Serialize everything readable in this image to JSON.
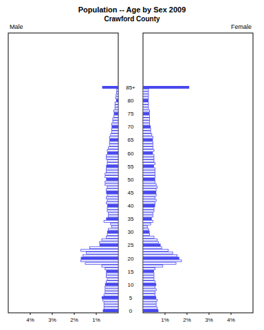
{
  "chart_data": {
    "type": "bar",
    "orientation": "horizontal",
    "title": "Population -- Age by Sex 2009",
    "subtitle": "Crawford County",
    "categories": [
      "0",
      null,
      null,
      null,
      null,
      "5",
      null,
      null,
      null,
      null,
      "10",
      null,
      null,
      null,
      null,
      "15",
      null,
      null,
      null,
      null,
      "20",
      null,
      null,
      null,
      null,
      "25",
      null,
      null,
      null,
      null,
      "30",
      null,
      null,
      null,
      null,
      "35",
      null,
      null,
      null,
      null,
      "40",
      null,
      null,
      null,
      null,
      "45",
      null,
      null,
      null,
      null,
      "50",
      null,
      null,
      null,
      null,
      "55",
      null,
      null,
      null,
      null,
      "60",
      null,
      null,
      null,
      null,
      "65",
      null,
      null,
      null,
      null,
      "70",
      null,
      null,
      null,
      null,
      "75",
      null,
      null,
      null,
      null,
      "80",
      null,
      null,
      null,
      null,
      "85+"
    ],
    "series": [
      {
        "name": "Male",
        "color": "#4848ee",
        "values": [
          0.7,
          0.65,
          0.65,
          0.65,
          0.7,
          0.75,
          0.65,
          0.6,
          0.6,
          0.6,
          0.6,
          0.55,
          0.5,
          0.55,
          0.55,
          0.55,
          0.6,
          0.75,
          1.5,
          1.7,
          1.7,
          1.6,
          1.45,
          1.7,
          1.3,
          0.85,
          0.85,
          0.75,
          0.55,
          0.5,
          0.5,
          0.45,
          0.3,
          0.35,
          0.65,
          0.55,
          0.45,
          0.45,
          0.5,
          0.5,
          0.5,
          0.55,
          0.5,
          0.55,
          0.5,
          0.55,
          0.55,
          0.5,
          0.6,
          0.6,
          0.55,
          0.6,
          0.6,
          0.55,
          0.55,
          0.55,
          0.5,
          0.5,
          0.55,
          0.55,
          0.5,
          0.5,
          0.45,
          0.4,
          0.4,
          0.4,
          0.4,
          0.35,
          0.3,
          0.3,
          0.3,
          0.3,
          0.25,
          0.25,
          0.2,
          0.2,
          0.2,
          0.15,
          0.15,
          0.15,
          0.1,
          0.12,
          0.1,
          0.08,
          0.07,
          0.73
        ]
      },
      {
        "name": "Female",
        "color": "#4848ee",
        "values": [
          0.7,
          0.65,
          0.6,
          0.6,
          0.65,
          0.6,
          0.55,
          0.55,
          0.6,
          0.55,
          0.6,
          0.55,
          0.5,
          0.5,
          0.5,
          0.5,
          0.55,
          0.9,
          1.5,
          1.75,
          1.65,
          1.55,
          1.35,
          1.15,
          0.85,
          0.8,
          0.7,
          0.65,
          0.5,
          0.3,
          0.3,
          0.25,
          0.2,
          0.35,
          0.45,
          0.4,
          0.45,
          0.45,
          0.5,
          0.5,
          0.55,
          0.55,
          0.6,
          0.55,
          0.6,
          0.6,
          0.6,
          0.65,
          0.6,
          0.55,
          0.55,
          0.55,
          0.55,
          0.55,
          0.55,
          0.5,
          0.55,
          0.5,
          0.5,
          0.5,
          0.45,
          0.5,
          0.45,
          0.45,
          0.45,
          0.45,
          0.45,
          0.4,
          0.35,
          0.35,
          0.35,
          0.3,
          0.3,
          0.3,
          0.3,
          0.3,
          0.3,
          0.25,
          0.25,
          0.25,
          0.25,
          0.25,
          0.25,
          0.25,
          0.25,
          2.1
        ]
      }
    ],
    "xlim": [
      0,
      5
    ],
    "xticks": [
      {
        "value": 1,
        "label": "1%"
      },
      {
        "value": 2,
        "label": "2%"
      },
      {
        "value": 3,
        "label": "3%"
      },
      {
        "value": 4,
        "label": "4%"
      }
    ]
  }
}
